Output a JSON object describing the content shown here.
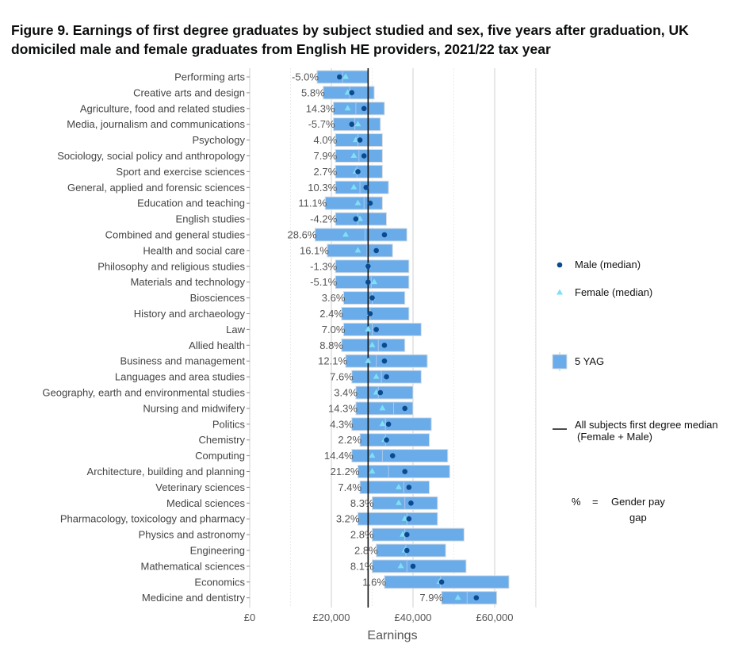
{
  "title": "Figure 9. Earnings of first degree graduates by subject studied and sex, five years after graduation, UK domiciled male and female graduates from English HE providers, 2021/22 tax year",
  "chart_data": {
    "type": "bar",
    "xlabel": "Earnings",
    "xlim": [
      0,
      70000
    ],
    "x_ticks": [
      0,
      20000,
      40000,
      60000
    ],
    "x_tick_labels": [
      "£0",
      "£20,000",
      "£40,000",
      "£60,000"
    ],
    "median_all": 29000,
    "categories": [
      "Performing arts",
      "Creative arts and design",
      "Agriculture, food and related studies",
      "Media, journalism and communications",
      "Psychology",
      "Sociology, social policy and anthropology",
      "Sport and exercise sciences",
      "General, applied and forensic sciences",
      "Education and teaching",
      "English studies",
      "Combined and general studies",
      "Health and social care",
      "Philosophy and religious studies",
      "Materials and technology",
      "Biosciences",
      "History and archaeology",
      "Law",
      "Allied health",
      "Business and management",
      "Languages and area studies",
      "Geography, earth and environmental studies",
      "Nursing and midwifery",
      "Politics",
      "Chemistry",
      "Computing",
      "Architecture, building and planning",
      "Veterinary sciences",
      "Medical sciences",
      "Pharmacology, toxicology and pharmacy",
      "Physics and astronomy",
      "Engineering",
      "Mathematical sciences",
      "Economics",
      "Medicine and dentistry"
    ],
    "gap_labels": [
      "-5.0%",
      "5.8%",
      "14.3%",
      "-5.7%",
      "4.0%",
      "7.9%",
      "2.7%",
      "10.3%",
      "11.1%",
      "-4.2%",
      "28.6%",
      "16.1%",
      "-1.3%",
      "-5.1%",
      "3.6%",
      "2.4%",
      "7.0%",
      "8.8%",
      "12.1%",
      "7.6%",
      "3.4%",
      "14.3%",
      "4.3%",
      "2.2%",
      "14.4%",
      "21.2%",
      "7.4%",
      "8.3%",
      "3.2%",
      "2.8%",
      "2.8%",
      "8.1%",
      "1.6%",
      "7.9%"
    ],
    "series": [
      {
        "name": "5 YAG",
        "kind": "range",
        "low": [
          16500,
          18000,
          20500,
          20500,
          21000,
          21000,
          21000,
          21000,
          18500,
          21000,
          16000,
          19000,
          21000,
          21000,
          23000,
          22500,
          23000,
          22500,
          23500,
          25000,
          26000,
          26000,
          25000,
          27000,
          25000,
          26500,
          27000,
          30000,
          26500,
          30000,
          31000,
          30000,
          33000,
          47000
        ],
        "high": [
          29000,
          30500,
          33000,
          32000,
          32500,
          32500,
          32500,
          34000,
          32500,
          33500,
          38500,
          35000,
          39000,
          39000,
          38000,
          39000,
          42000,
          38000,
          43500,
          42000,
          40000,
          40000,
          44500,
          44000,
          48500,
          49000,
          44000,
          46000,
          46000,
          52500,
          48000,
          53000,
          63500,
          60500
        ]
      },
      {
        "name": "Male (median)",
        "kind": "point",
        "values": [
          22000,
          25000,
          28000,
          25000,
          27000,
          28000,
          26500,
          28500,
          29500,
          26000,
          33000,
          31000,
          29000,
          29000,
          30000,
          29500,
          31000,
          33000,
          33000,
          33500,
          32000,
          38000,
          34000,
          33500,
          35000,
          38000,
          39000,
          39500,
          39000,
          38500,
          38500,
          40000,
          47000,
          55500
        ]
      },
      {
        "name": "Female (median)",
        "kind": "point",
        "values": [
          23500,
          24000,
          24000,
          26500,
          26000,
          25500,
          26000,
          25500,
          26500,
          27000,
          23500,
          26500,
          29000,
          30500,
          30000,
          29500,
          29000,
          30000,
          29000,
          31000,
          31000,
          32500,
          32500,
          33000,
          30000,
          30000,
          36500,
          36500,
          38000,
          37500,
          38000,
          37000,
          46500,
          51000
        ]
      }
    ],
    "legend": {
      "position": "right",
      "male": "Male (median)",
      "female": "Female (median)",
      "bar": "5 YAG",
      "median_line_1": "All subjects first degree median",
      "median_line_2": "(Female + Male)",
      "pct_symbol": "%",
      "pct_equals": "=",
      "pct_line_1": "Gender pay",
      "pct_line_2": "gap"
    },
    "colors": {
      "bar": "#6aabe9",
      "bar_stroke": "#d9dde1",
      "male": "#0b4a8f",
      "female": "#7fe0f5",
      "median_line": "#111111",
      "grid": "#cfcfcf"
    }
  }
}
